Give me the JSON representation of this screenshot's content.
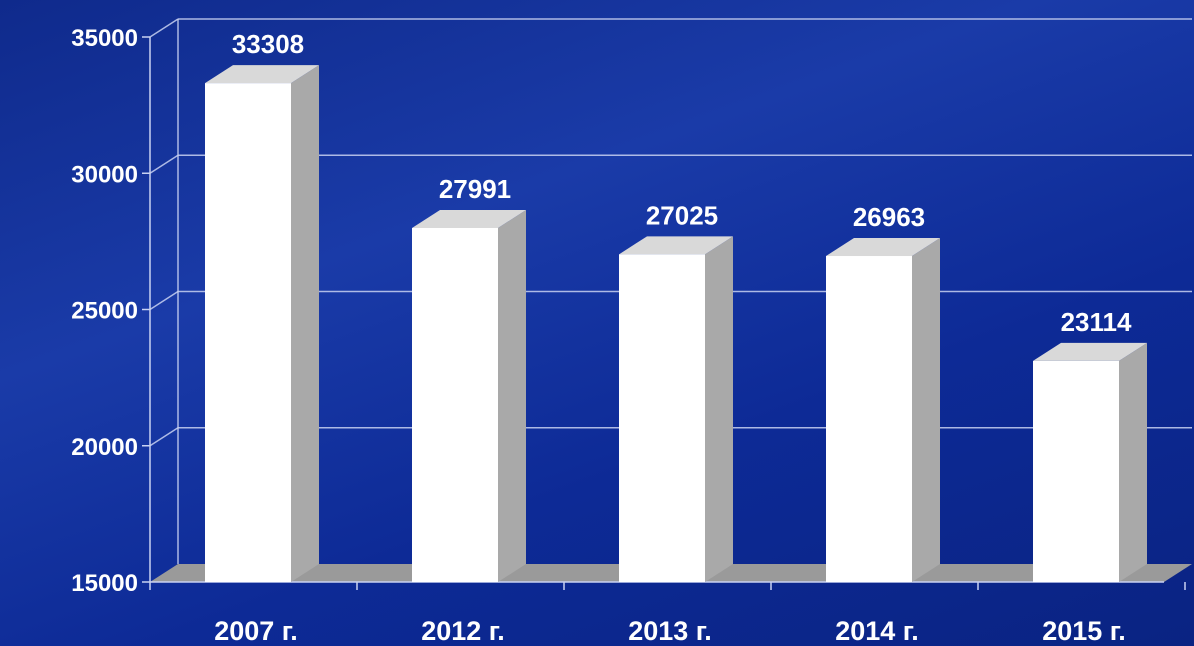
{
  "chart_data": {
    "type": "bar",
    "categories": [
      "2007 г.",
      "2012 г.",
      "2013 г.",
      "2014 г.",
      "2015 г."
    ],
    "values": [
      33308,
      27991,
      27025,
      26963,
      23114
    ],
    "data_labels": [
      "33308",
      "27991",
      "27025",
      "26963",
      "23114"
    ],
    "title": "",
    "xlabel": "",
    "ylabel": "",
    "ylim": [
      15000,
      35000
    ],
    "yticks": [
      15000,
      20000,
      25000,
      30000,
      35000
    ],
    "ytick_labels": [
      "15000",
      "20000",
      "25000",
      "30000",
      "35000"
    ],
    "grid": true,
    "legend": "none",
    "style": "3d-column",
    "colors": {
      "background": "#1434a4",
      "bar_front": "#ffffff",
      "bar_side": "#a9a9a9",
      "bar_top": "#d9d9d9",
      "gridline": "#c9d2f2",
      "floor": "#9a9a9a",
      "text": "#ffffff"
    }
  }
}
